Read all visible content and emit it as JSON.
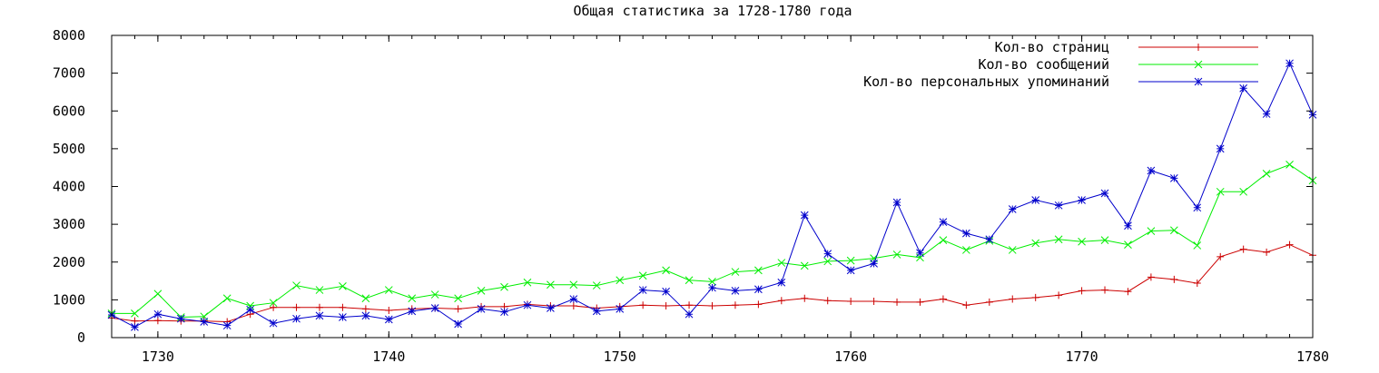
{
  "chart_data": {
    "type": "line",
    "title": "Общая статистика за 1728-1780 года",
    "xlabel": "",
    "ylabel": "",
    "xlim": [
      1728,
      1780
    ],
    "ylim": [
      0,
      8000
    ],
    "x_ticks": [
      1730,
      1740,
      1750,
      1760,
      1770,
      1780
    ],
    "y_ticks": [
      0,
      1000,
      2000,
      3000,
      4000,
      5000,
      6000,
      7000,
      8000
    ],
    "grid": false,
    "legend_position": "top-right",
    "x": [
      1728,
      1729,
      1730,
      1731,
      1732,
      1733,
      1734,
      1735,
      1736,
      1737,
      1738,
      1739,
      1740,
      1741,
      1742,
      1743,
      1744,
      1745,
      1746,
      1747,
      1748,
      1749,
      1750,
      1751,
      1752,
      1753,
      1754,
      1755,
      1756,
      1757,
      1758,
      1759,
      1760,
      1761,
      1762,
      1763,
      1764,
      1765,
      1766,
      1767,
      1768,
      1769,
      1770,
      1771,
      1772,
      1773,
      1774,
      1775,
      1776,
      1777,
      1778,
      1779,
      1780
    ],
    "series": [
      {
        "name": "Кол-во страниц",
        "color": "#cc0000",
        "marker": "plus",
        "values": [
          520,
          440,
          450,
          440,
          440,
          420,
          620,
          800,
          800,
          800,
          800,
          760,
          720,
          760,
          780,
          760,
          820,
          820,
          880,
          840,
          840,
          780,
          820,
          860,
          840,
          860,
          840,
          860,
          880,
          980,
          1040,
          980,
          960,
          960,
          940,
          940,
          1020,
          860,
          940,
          1020,
          1060,
          1120,
          1240,
          1260,
          1220,
          1600,
          1540,
          1440,
          2140,
          2340,
          2260,
          2460,
          2180
        ]
      },
      {
        "name": "Кол-во сообщений",
        "color": "#00ee00",
        "marker": "x",
        "values": [
          640,
          640,
          1160,
          540,
          560,
          1040,
          840,
          920,
          1380,
          1260,
          1360,
          1040,
          1260,
          1040,
          1140,
          1040,
          1240,
          1340,
          1460,
          1400,
          1400,
          1380,
          1520,
          1640,
          1780,
          1520,
          1480,
          1740,
          1780,
          1980,
          1900,
          2020,
          2040,
          2100,
          2200,
          2120,
          2580,
          2320,
          2560,
          2320,
          2500,
          2600,
          2540,
          2580,
          2460,
          2820,
          2840,
          2440,
          3860,
          3860,
          4340,
          4580,
          4160
        ]
      },
      {
        "name": "Кол-во персональных упоминаний",
        "color": "#0000cc",
        "marker": "star",
        "values": [
          600,
          280,
          620,
          500,
          420,
          320,
          740,
          380,
          500,
          580,
          540,
          580,
          480,
          700,
          780,
          360,
          760,
          680,
          860,
          780,
          1020,
          700,
          760,
          1260,
          1220,
          620,
          1320,
          1240,
          1280,
          1460,
          3240,
          2220,
          1780,
          1960,
          3580,
          2240,
          3060,
          2760,
          2600,
          3400,
          3640,
          3500,
          3640,
          3820,
          2960,
          4420,
          4220,
          3440,
          5000,
          6600,
          5920,
          7260,
          5900
        ]
      }
    ]
  }
}
